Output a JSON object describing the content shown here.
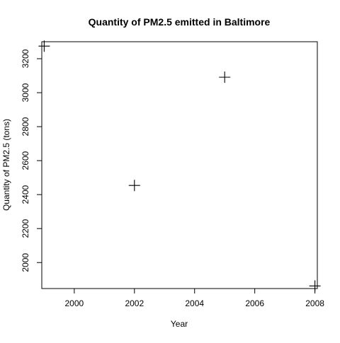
{
  "chart_data": {
    "type": "scatter",
    "title": "Quantity of PM2.5 emitted in Baltimore",
    "xlabel": "Year",
    "ylabel": "Quantity of PM2.5 (tons)",
    "xlim": [
      1998.92,
      2008.08
    ],
    "ylim": [
      1847,
      3300
    ],
    "x_ticks": [
      2000,
      2002,
      2004,
      2006,
      2008
    ],
    "y_ticks": [
      2000,
      2200,
      2400,
      2600,
      2800,
      3000,
      3200
    ],
    "marker": "plus",
    "grid": false,
    "series": [
      {
        "x": [
          1999,
          2002,
          2005,
          2008
        ],
        "y": [
          3274.18,
          2453.92,
          3091.35,
          1862.28
        ]
      }
    ]
  }
}
